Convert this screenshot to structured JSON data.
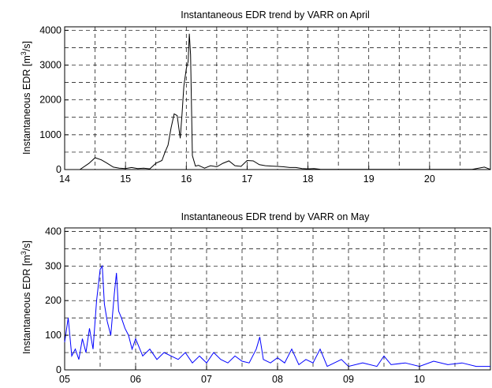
{
  "chart_data": [
    {
      "type": "line",
      "title": "Instantaneous EDR trend by VARR on April",
      "ylabel": "Instantaneous EDR [m",
      "ylabel_sup": "3",
      "ylabel_tail": "/s]",
      "xlim": [
        14,
        21
      ],
      "ylim": [
        0,
        4100
      ],
      "x_ticks": [
        "14",
        "15",
        "16",
        "17",
        "18",
        "19",
        "20"
      ],
      "x_tick_values": [
        14,
        15,
        16,
        17,
        18,
        19,
        20
      ],
      "y_ticks": [
        "0",
        "1000",
        "2000",
        "3000",
        "4000"
      ],
      "y_tick_values": [
        0,
        1000,
        2000,
        3000,
        4000
      ],
      "grid": true,
      "line_color": "#000000",
      "series": [
        {
          "x": [
            14.25,
            14.4,
            14.5,
            14.6,
            14.7,
            14.8,
            14.9,
            15.0,
            15.1,
            15.2,
            15.3,
            15.4,
            15.5,
            15.6,
            15.65,
            15.7,
            15.75,
            15.8,
            15.85,
            15.9,
            15.93,
            15.96,
            16.0,
            16.03,
            16.05,
            16.07,
            16.1,
            16.15,
            16.2,
            16.3,
            16.4,
            16.5,
            16.6,
            16.7,
            16.8,
            16.9,
            17.0,
            17.1,
            17.2,
            17.3,
            17.4,
            17.5,
            17.6,
            17.7,
            17.8,
            17.9,
            18.0,
            18.1,
            18.2,
            18.3,
            18.5,
            18.7,
            18.9,
            19.2,
            19.5,
            19.8,
            20.1,
            20.4,
            20.7,
            20.9,
            21.0
          ],
          "y": [
            0,
            180,
            340,
            280,
            180,
            70,
            40,
            30,
            60,
            30,
            40,
            20,
            180,
            260,
            500,
            700,
            1200,
            1600,
            1550,
            900,
            1600,
            2400,
            2900,
            3100,
            3900,
            3300,
            400,
            100,
            120,
            40,
            110,
            80,
            180,
            250,
            110,
            90,
            260,
            250,
            140,
            110,
            100,
            90,
            80,
            60,
            60,
            30,
            20,
            30,
            10,
            5,
            5,
            5,
            5,
            5,
            5,
            5,
            5,
            5,
            5,
            70,
            5
          ]
        }
      ]
    },
    {
      "type": "line",
      "title": "Instantaneous EDR trend by VARR on May",
      "ylabel": "Instantaneous EDR [m",
      "ylabel_sup": "3",
      "ylabel_tail": "/s]",
      "xlim": [
        5,
        11
      ],
      "ylim": [
        0,
        410
      ],
      "x_ticks": [
        "05",
        "06",
        "07",
        "08",
        "09",
        "10"
      ],
      "x_tick_values": [
        5,
        6,
        7,
        8,
        9,
        10
      ],
      "y_ticks": [
        "0",
        "100",
        "200",
        "300",
        "400"
      ],
      "y_tick_values": [
        0,
        100,
        200,
        300,
        400
      ],
      "grid": true,
      "line_color": "#0000ff",
      "series": [
        {
          "x": [
            5.0,
            5.05,
            5.1,
            5.15,
            5.2,
            5.25,
            5.3,
            5.35,
            5.4,
            5.45,
            5.5,
            5.53,
            5.56,
            5.6,
            5.65,
            5.7,
            5.73,
            5.76,
            5.8,
            5.85,
            5.9,
            5.95,
            6.0,
            6.1,
            6.2,
            6.3,
            6.4,
            6.5,
            6.6,
            6.7,
            6.8,
            6.9,
            7.0,
            7.1,
            7.2,
            7.3,
            7.4,
            7.5,
            7.6,
            7.7,
            7.75,
            7.8,
            7.9,
            8.0,
            8.1,
            8.2,
            8.3,
            8.4,
            8.5,
            8.6,
            8.7,
            8.8,
            8.9,
            9.0,
            9.2,
            9.4,
            9.5,
            9.6,
            9.8,
            10.0,
            10.2,
            10.4,
            10.6,
            10.8,
            11.0
          ],
          "y": [
            80,
            150,
            40,
            60,
            30,
            90,
            50,
            120,
            60,
            200,
            290,
            300,
            190,
            140,
            100,
            220,
            280,
            170,
            150,
            120,
            100,
            60,
            90,
            40,
            60,
            30,
            50,
            40,
            30,
            50,
            20,
            40,
            20,
            50,
            30,
            20,
            40,
            25,
            20,
            60,
            95,
            30,
            20,
            35,
            20,
            60,
            15,
            30,
            20,
            60,
            10,
            20,
            30,
            10,
            20,
            10,
            40,
            15,
            20,
            10,
            25,
            15,
            20,
            10,
            10
          ]
        }
      ]
    }
  ]
}
